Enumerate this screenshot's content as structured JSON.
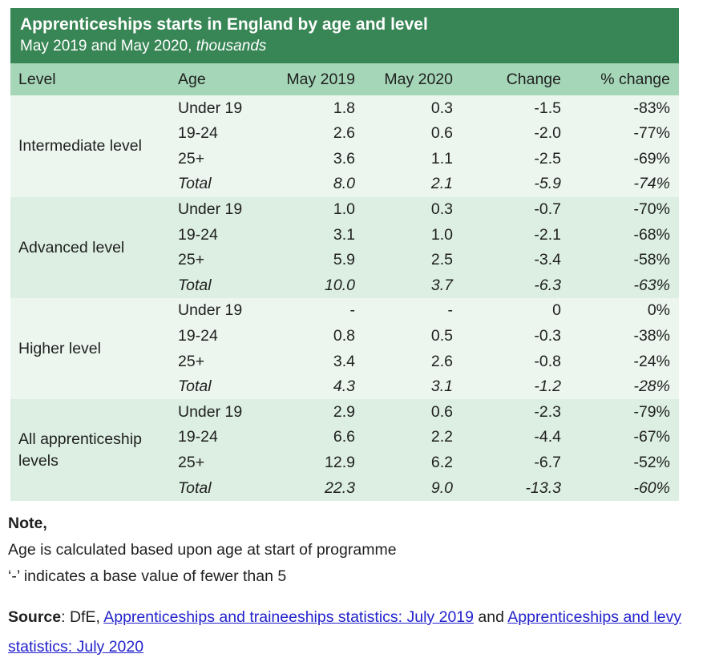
{
  "chart_data": {
    "type": "table",
    "title": "Apprenticeships starts in England by age and level",
    "subtitle_regular": "May 2019 and May 2020, ",
    "subtitle_italic": "thousands",
    "columns": [
      "Level",
      "Age",
      "May 2019",
      "May 2020",
      "Change",
      "% change"
    ],
    "groups": [
      {
        "level": "Intermediate level",
        "rows": [
          [
            "Under 19",
            "1.8",
            "0.3",
            "-1.5",
            "-83%"
          ],
          [
            "19-24",
            "2.6",
            "0.6",
            "-2.0",
            "-77%"
          ],
          [
            "25+",
            "3.6",
            "1.1",
            "-2.5",
            "-69%"
          ],
          [
            "Total",
            "8.0",
            "2.1",
            "-5.9",
            "-74%"
          ]
        ]
      },
      {
        "level": "Advanced level",
        "rows": [
          [
            "Under 19",
            "1.0",
            "0.3",
            "-0.7",
            "-70%"
          ],
          [
            "19-24",
            "3.1",
            "1.0",
            "-2.1",
            "-68%"
          ],
          [
            "25+",
            "5.9",
            "2.5",
            "-3.4",
            "-58%"
          ],
          [
            "Total",
            "10.0",
            "3.7",
            "-6.3",
            "-63%"
          ]
        ]
      },
      {
        "level": "Higher level",
        "rows": [
          [
            "Under 19",
            "-",
            "-",
            "0",
            "0%"
          ],
          [
            "19-24",
            "0.8",
            "0.5",
            "-0.3",
            "-38%"
          ],
          [
            "25+",
            "3.4",
            "2.6",
            "-0.8",
            "-24%"
          ],
          [
            "Total",
            "4.3",
            "3.1",
            "-1.2",
            "-28%"
          ]
        ]
      },
      {
        "level": "All apprenticeship levels",
        "rows": [
          [
            "Under 19",
            "2.9",
            "0.6",
            "-2.3",
            "-79%"
          ],
          [
            "19-24",
            "6.6",
            "2.2",
            "-4.4",
            "-67%"
          ],
          [
            "25+",
            "12.9",
            "6.2",
            "-6.7",
            "-52%"
          ],
          [
            "Total",
            "22.3",
            "9.0",
            "-13.3",
            "-60%"
          ]
        ]
      }
    ],
    "layout": {
      "legend": "none",
      "grid": "off",
      "row_group_striping": true
    }
  },
  "notes": {
    "label": "Note,",
    "line1": "Age is calculated based upon age at start of programme",
    "line2": "‘-’ indicates a base value of fewer than 5"
  },
  "source": {
    "label": "Source",
    "prefix": ": DfE, ",
    "link1": "Apprenticeships and traineeships statistics: July 2019",
    "middle": " and ",
    "link2": "Apprenticeships and levy statistics: July 2020"
  },
  "colors": {
    "header_green": "#388655",
    "column_header_green": "#a5d6b8",
    "group_bg_light": "#ecf6ef",
    "group_bg_green": "#dcefe2",
    "link_blue": "#2222cc",
    "title_text": "#ffffff",
    "body_text": "#1f1f1f"
  }
}
